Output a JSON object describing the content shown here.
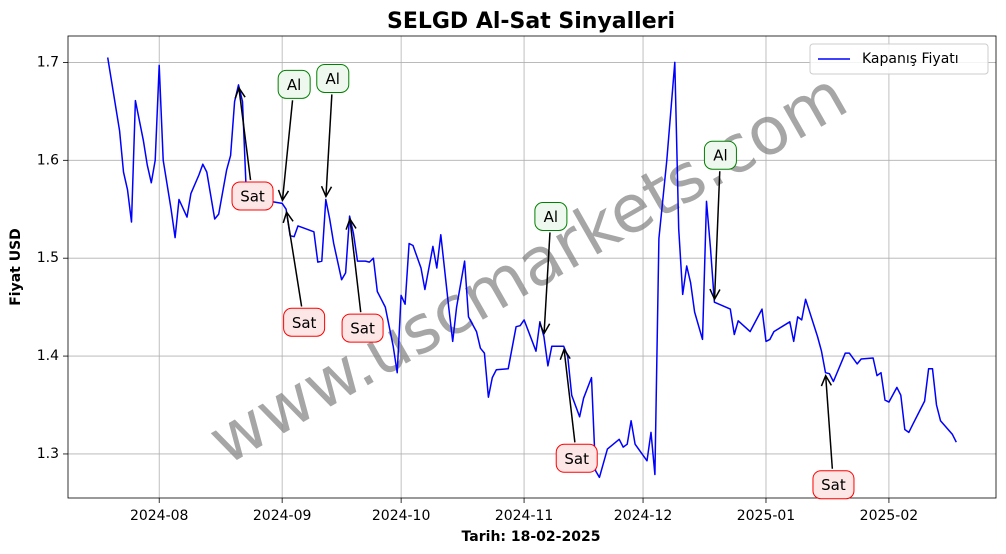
{
  "chart_data": {
    "type": "line",
    "title": "SELGD Al-Sat Sinyalleri",
    "xlabel": "Tarih: 18-02-2025",
    "ylabel": "Fiyat USD",
    "watermark": "www.uscmarkets.com",
    "legend": "upper right",
    "grid": true,
    "xlim": [
      "2024-07-09",
      "2025-02-28"
    ],
    "ylim": [
      1.255,
      1.727
    ],
    "xticks": [
      {
        "value": "2024-08-01",
        "label": "2024-08"
      },
      {
        "value": "2024-09-01",
        "label": "2024-09"
      },
      {
        "value": "2024-10-01",
        "label": "2024-10"
      },
      {
        "value": "2024-11-01",
        "label": "2024-11"
      },
      {
        "value": "2024-12-01",
        "label": "2024-12"
      },
      {
        "value": "2025-01-01",
        "label": "2025-01"
      },
      {
        "value": "2025-02-01",
        "label": "2025-02"
      }
    ],
    "yticks": [
      1.3,
      1.4,
      1.5,
      1.6,
      1.7
    ],
    "x": [
      "2024-07-19",
      "2024-07-22",
      "2024-07-23",
      "2024-07-24",
      "2024-07-25",
      "2024-07-26",
      "2024-07-28",
      "2024-07-29",
      "2024-07-30",
      "2024-07-31",
      "2024-08-01",
      "2024-08-02",
      "2024-08-04",
      "2024-08-05",
      "2024-08-06",
      "2024-08-08",
      "2024-08-09",
      "2024-08-11",
      "2024-08-12",
      "2024-08-13",
      "2024-08-15",
      "2024-08-16",
      "2024-08-18",
      "2024-08-19",
      "2024-08-20",
      "2024-08-21",
      "2024-08-22",
      "2024-08-23",
      "2024-08-25",
      "2024-08-27",
      "2024-08-29",
      "2024-09-01",
      "2024-09-02",
      "2024-09-03",
      "2024-09-04",
      "2024-09-05",
      "2024-09-07",
      "2024-09-09",
      "2024-09-10",
      "2024-09-11",
      "2024-09-12",
      "2024-09-13",
      "2024-09-14",
      "2024-09-16",
      "2024-09-17",
      "2024-09-18",
      "2024-09-19",
      "2024-09-20",
      "2024-09-22",
      "2024-09-23",
      "2024-09-24",
      "2024-09-25",
      "2024-09-26",
      "2024-09-27",
      "2024-09-29",
      "2024-09-30",
      "2024-10-01",
      "2024-10-02",
      "2024-10-03",
      "2024-10-04",
      "2024-10-06",
      "2024-10-07",
      "2024-10-09",
      "2024-10-10",
      "2024-10-11",
      "2024-10-13",
      "2024-10-14",
      "2024-10-15",
      "2024-10-17",
      "2024-10-18",
      "2024-10-20",
      "2024-10-21",
      "2024-10-22",
      "2024-10-23",
      "2024-10-24",
      "2024-10-25",
      "2024-10-28",
      "2024-10-30",
      "2024-10-31",
      "2024-11-01",
      "2024-11-04",
      "2024-11-05",
      "2024-11-06",
      "2024-11-07",
      "2024-11-08",
      "2024-11-11",
      "2024-11-12",
      "2024-11-13",
      "2024-11-15",
      "2024-11-16",
      "2024-11-18",
      "2024-11-19",
      "2024-11-20",
      "2024-11-22",
      "2024-11-25",
      "2024-11-26",
      "2024-11-27",
      "2024-11-28",
      "2024-11-29",
      "2024-12-02",
      "2024-12-03",
      "2024-12-04",
      "2024-12-05",
      "2024-12-07",
      "2024-12-09",
      "2024-12-10",
      "2024-12-11",
      "2024-12-12",
      "2024-12-13",
      "2024-12-14",
      "2024-12-16",
      "2024-12-17",
      "2024-12-18",
      "2024-12-19",
      "2024-12-23",
      "2024-12-24",
      "2024-12-25",
      "2024-12-28",
      "2024-12-31",
      "2025-01-01",
      "2025-01-02",
      "2025-01-03",
      "2025-01-07",
      "2025-01-08",
      "2025-01-09",
      "2025-01-10",
      "2025-01-11",
      "2025-01-14",
      "2025-01-15",
      "2025-01-16",
      "2025-01-17",
      "2025-01-18",
      "2025-01-21",
      "2025-01-22",
      "2025-01-24",
      "2025-01-25",
      "2025-01-28",
      "2025-01-29",
      "2025-01-30",
      "2025-01-31",
      "2025-02-01",
      "2025-02-03",
      "2025-02-04",
      "2025-02-05",
      "2025-02-06",
      "2025-02-07",
      "2025-02-10",
      "2025-02-11",
      "2025-02-12",
      "2025-02-13",
      "2025-02-14",
      "2025-02-17",
      "2025-02-18"
    ],
    "series": [
      {
        "name": "Kapanış Fiyatı",
        "color": "#0000ff",
        "values": [
          1.705,
          1.63,
          1.588,
          1.57,
          1.537,
          1.661,
          1.62,
          1.595,
          1.577,
          1.6,
          1.697,
          1.6,
          1.55,
          1.521,
          1.56,
          1.542,
          1.566,
          1.585,
          1.596,
          1.588,
          1.54,
          1.545,
          1.59,
          1.605,
          1.66,
          1.677,
          1.66,
          1.562,
          1.565,
          1.56,
          1.558,
          1.556,
          1.55,
          1.523,
          1.522,
          1.533,
          1.53,
          1.527,
          1.496,
          1.497,
          1.56,
          1.54,
          1.515,
          1.478,
          1.485,
          1.543,
          1.525,
          1.497,
          1.497,
          1.496,
          1.5,
          1.466,
          1.458,
          1.45,
          1.41,
          1.383,
          1.462,
          1.453,
          1.515,
          1.513,
          1.49,
          1.468,
          1.512,
          1.49,
          1.524,
          1.45,
          1.415,
          1.45,
          1.497,
          1.44,
          1.425,
          1.408,
          1.403,
          1.358,
          1.378,
          1.386,
          1.387,
          1.43,
          1.431,
          1.437,
          1.405,
          1.435,
          1.42,
          1.39,
          1.41,
          1.41,
          1.4,
          1.36,
          1.338,
          1.357,
          1.378,
          1.283,
          1.276,
          1.305,
          1.315,
          1.307,
          1.31,
          1.334,
          1.31,
          1.293,
          1.322,
          1.279,
          1.52,
          1.6,
          1.7,
          1.53,
          1.463,
          1.492,
          1.475,
          1.445,
          1.417,
          1.558,
          1.51,
          1.455,
          1.448,
          1.422,
          1.436,
          1.425,
          1.448,
          1.415,
          1.417,
          1.425,
          1.435,
          1.415,
          1.44,
          1.437,
          1.458,
          1.42,
          1.405,
          1.383,
          1.382,
          1.374,
          1.403,
          1.403,
          1.392,
          1.397,
          1.398,
          1.38,
          1.383,
          1.355,
          1.353,
          1.368,
          1.36,
          1.325,
          1.322,
          1.33,
          1.354,
          1.387,
          1.387,
          1.35,
          1.334,
          1.32,
          1.312
        ]
      }
    ],
    "annotations": [
      {
        "text": "Sat",
        "x": "2024-08-21",
        "y": 1.677,
        "edge_color": "#ff0000",
        "box_color": "#fde6e6"
      },
      {
        "text": "Al",
        "x": "2024-09-01",
        "y": 1.556,
        "edge_color": "#008000",
        "box_color": "#eef8ee"
      },
      {
        "text": "Al",
        "x": "2024-09-12",
        "y": 1.56,
        "edge_color": "#008000",
        "box_color": "#eef8ee"
      },
      {
        "text": "Sat",
        "x": "2024-09-02",
        "y": 1.55,
        "edge_color": "#ff0000",
        "box_color": "#fde6e6"
      },
      {
        "text": "Sat",
        "x": "2024-09-18",
        "y": 1.543,
        "edge_color": "#ff0000",
        "box_color": "#fde6e6"
      },
      {
        "text": "Al",
        "x": "2024-11-06",
        "y": 1.42,
        "edge_color": "#008000",
        "box_color": "#eef8ee"
      },
      {
        "text": "Sat",
        "x": "2024-11-11",
        "y": 1.41,
        "edge_color": "#ff0000",
        "box_color": "#fde6e6"
      },
      {
        "text": "Al",
        "x": "2024-12-19",
        "y": 1.455,
        "edge_color": "#008000",
        "box_color": "#eef8ee"
      },
      {
        "text": "Sat",
        "x": "2025-01-16",
        "y": 1.383,
        "edge_color": "#ff0000",
        "box_color": "#fde6e6"
      }
    ]
  }
}
